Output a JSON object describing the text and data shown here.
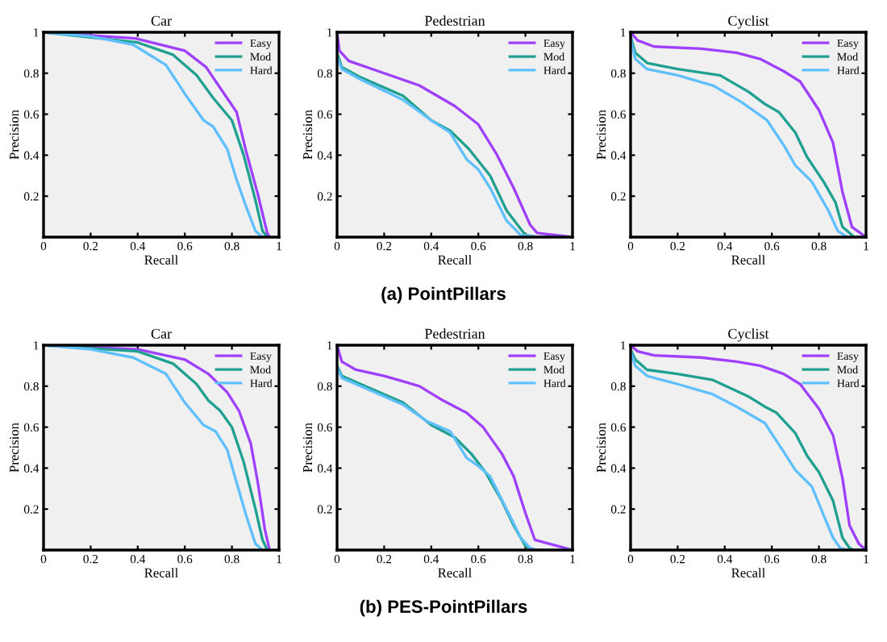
{
  "chart_data": [
    {
      "type": "line",
      "title": "Car",
      "xlabel": "Recall",
      "ylabel": "Precision",
      "xlim": [
        0,
        1
      ],
      "ylim": [
        0,
        1
      ],
      "xticks": [
        0,
        0.2,
        0.4,
        0.6,
        0.8,
        1
      ],
      "yticks": [
        0.2,
        0.4,
        0.6,
        0.8,
        1
      ],
      "grid": false,
      "legend": "top right",
      "annotations": [
        "(a) PointPillars"
      ],
      "series": [
        {
          "name": "Easy",
          "color": "#a040ff",
          "x": [
            0,
            0.39,
            0.6,
            0.69,
            0.82,
            0.86,
            0.91,
            0.95,
            0.96
          ],
          "values": [
            1,
            0.97,
            0.91,
            0.83,
            0.61,
            0.42,
            0.21,
            0.02,
            0
          ]
        },
        {
          "name": "Mod",
          "color": "#20a090",
          "x": [
            0,
            0.4,
            0.55,
            0.65,
            0.72,
            0.8,
            0.85,
            0.9,
            0.93,
            0.95
          ],
          "values": [
            1,
            0.95,
            0.89,
            0.79,
            0.68,
            0.57,
            0.4,
            0.18,
            0.03,
            0
          ]
        },
        {
          "name": "Hard",
          "color": "#60c0ff",
          "x": [
            0,
            0.2,
            0.38,
            0.52,
            0.6,
            0.68,
            0.72,
            0.78,
            0.82,
            0.86,
            0.9,
            0.93
          ],
          "values": [
            1,
            0.98,
            0.94,
            0.84,
            0.7,
            0.57,
            0.54,
            0.43,
            0.28,
            0.15,
            0.03,
            0
          ]
        }
      ]
    },
    {
      "type": "line",
      "title": "Pedestrian",
      "xlabel": "Recall",
      "ylabel": "Precision",
      "xlim": [
        0,
        1
      ],
      "ylim": [
        0,
        1
      ],
      "xticks": [
        0,
        0.2,
        0.4,
        0.6,
        0.8,
        1
      ],
      "yticks": [
        0.2,
        0.4,
        0.6,
        0.8,
        1
      ],
      "grid": false,
      "legend": "top right",
      "series": [
        {
          "name": "Easy",
          "color": "#a040ff",
          "x": [
            0,
            0.01,
            0.05,
            0.2,
            0.35,
            0.5,
            0.6,
            0.68,
            0.75,
            0.82,
            0.85,
            1
          ],
          "values": [
            1,
            0.91,
            0.86,
            0.8,
            0.74,
            0.64,
            0.55,
            0.4,
            0.24,
            0.06,
            0.02,
            0
          ]
        },
        {
          "name": "Mod",
          "color": "#20a090",
          "x": [
            0,
            0.02,
            0.1,
            0.28,
            0.4,
            0.48,
            0.56,
            0.65,
            0.72,
            0.8,
            0.85,
            1
          ],
          "values": [
            0.9,
            0.83,
            0.78,
            0.69,
            0.57,
            0.52,
            0.43,
            0.3,
            0.13,
            0.01,
            0,
            0
          ]
        },
        {
          "name": "Hard",
          "color": "#60c0ff",
          "x": [
            0,
            0.02,
            0.1,
            0.28,
            0.4,
            0.48,
            0.55,
            0.6,
            0.65,
            0.72,
            0.78,
            0.85,
            1
          ],
          "values": [
            0.88,
            0.82,
            0.77,
            0.67,
            0.57,
            0.51,
            0.38,
            0.33,
            0.24,
            0.08,
            0.01,
            0,
            0
          ]
        }
      ]
    },
    {
      "type": "line",
      "title": "Cyclist",
      "xlabel": "Recall",
      "ylabel": "Precision",
      "xlim": [
        0,
        1
      ],
      "ylim": [
        0,
        1
      ],
      "xticks": [
        0,
        0.2,
        0.4,
        0.6,
        0.8,
        1
      ],
      "yticks": [
        0.2,
        0.4,
        0.6,
        0.8,
        1
      ],
      "grid": false,
      "legend": "top right",
      "series": [
        {
          "name": "Easy",
          "color": "#a040ff",
          "x": [
            0,
            0.03,
            0.1,
            0.3,
            0.45,
            0.55,
            0.65,
            0.72,
            0.8,
            0.86,
            0.9,
            0.94,
            1
          ],
          "values": [
            1,
            0.96,
            0.93,
            0.92,
            0.9,
            0.87,
            0.81,
            0.76,
            0.62,
            0.46,
            0.22,
            0.05,
            0
          ]
        },
        {
          "name": "Mod",
          "color": "#20a090",
          "x": [
            0,
            0.02,
            0.07,
            0.2,
            0.38,
            0.5,
            0.57,
            0.63,
            0.7,
            0.75,
            0.82,
            0.87,
            0.9,
            0.95,
            1
          ],
          "values": [
            0.98,
            0.9,
            0.85,
            0.82,
            0.79,
            0.71,
            0.65,
            0.61,
            0.51,
            0.39,
            0.27,
            0.17,
            0.05,
            0,
            0
          ]
        },
        {
          "name": "Hard",
          "color": "#60c0ff",
          "x": [
            0,
            0.02,
            0.07,
            0.2,
            0.35,
            0.47,
            0.58,
            0.65,
            0.7,
            0.77,
            0.84,
            0.88,
            0.92,
            1
          ],
          "values": [
            0.97,
            0.87,
            0.82,
            0.79,
            0.74,
            0.66,
            0.57,
            0.45,
            0.35,
            0.27,
            0.13,
            0.03,
            0,
            0
          ]
        }
      ]
    },
    {
      "type": "line",
      "title": "Car",
      "xlabel": "Recall",
      "ylabel": "Precision",
      "xlim": [
        0,
        1
      ],
      "ylim": [
        0,
        1
      ],
      "xticks": [
        0,
        0.2,
        0.4,
        0.6,
        0.8,
        1
      ],
      "yticks": [
        0.2,
        0.4,
        0.6,
        0.8,
        1
      ],
      "grid": false,
      "legend": "top right",
      "annotations": [
        "(b) PES-PointPillars"
      ],
      "series": [
        {
          "name": "Easy",
          "color": "#a040ff",
          "x": [
            0,
            0.4,
            0.6,
            0.7,
            0.78,
            0.83,
            0.88,
            0.91,
            0.94,
            0.96
          ],
          "values": [
            1,
            0.98,
            0.93,
            0.86,
            0.77,
            0.68,
            0.52,
            0.33,
            0.1,
            0
          ]
        },
        {
          "name": "Mod",
          "color": "#20a090",
          "x": [
            0,
            0.4,
            0.55,
            0.65,
            0.7,
            0.75,
            0.8,
            0.85,
            0.9,
            0.93,
            0.95
          ],
          "values": [
            1,
            0.97,
            0.91,
            0.81,
            0.73,
            0.68,
            0.6,
            0.43,
            0.2,
            0.05,
            0
          ]
        },
        {
          "name": "Hard",
          "color": "#60c0ff",
          "x": [
            0,
            0.2,
            0.38,
            0.52,
            0.6,
            0.68,
            0.73,
            0.78,
            0.82,
            0.86,
            0.9,
            0.93
          ],
          "values": [
            1,
            0.98,
            0.94,
            0.86,
            0.72,
            0.61,
            0.58,
            0.49,
            0.33,
            0.17,
            0.03,
            0
          ]
        }
      ]
    },
    {
      "type": "line",
      "title": "Pedestrian",
      "xlabel": "Recall",
      "ylabel": "Precision",
      "xlim": [
        0,
        1
      ],
      "ylim": [
        0,
        1
      ],
      "xticks": [
        0,
        0.2,
        0.4,
        0.6,
        0.8,
        1
      ],
      "yticks": [
        0.2,
        0.4,
        0.6,
        0.8,
        1
      ],
      "grid": false,
      "legend": "top right",
      "series": [
        {
          "name": "Easy",
          "color": "#a040ff",
          "x": [
            0,
            0.02,
            0.08,
            0.2,
            0.35,
            0.45,
            0.55,
            0.62,
            0.7,
            0.75,
            0.8,
            0.84,
            1
          ],
          "values": [
            1,
            0.92,
            0.88,
            0.85,
            0.8,
            0.73,
            0.67,
            0.6,
            0.47,
            0.36,
            0.18,
            0.05,
            0
          ]
        },
        {
          "name": "Mod",
          "color": "#20a090",
          "x": [
            0,
            0.02,
            0.1,
            0.28,
            0.4,
            0.5,
            0.57,
            0.63,
            0.7,
            0.75,
            0.8,
            0.83,
            1
          ],
          "values": [
            0.9,
            0.85,
            0.81,
            0.72,
            0.61,
            0.55,
            0.47,
            0.38,
            0.24,
            0.12,
            0.02,
            0,
            0
          ]
        },
        {
          "name": "Hard",
          "color": "#60c0ff",
          "x": [
            0,
            0.02,
            0.1,
            0.28,
            0.38,
            0.48,
            0.55,
            0.6,
            0.65,
            0.72,
            0.78,
            0.82,
            0.85,
            1
          ],
          "values": [
            0.89,
            0.84,
            0.8,
            0.71,
            0.63,
            0.58,
            0.45,
            0.41,
            0.36,
            0.2,
            0.06,
            0.01,
            0,
            0
          ]
        }
      ]
    },
    {
      "type": "line",
      "title": "Cyclist",
      "xlabel": "Recall",
      "ylabel": "Precision",
      "xlim": [
        0,
        1
      ],
      "ylim": [
        0,
        1
      ],
      "xticks": [
        0,
        0.2,
        0.4,
        0.6,
        0.8,
        1
      ],
      "yticks": [
        0.2,
        0.4,
        0.6,
        0.8,
        1
      ],
      "grid": false,
      "legend": "top right",
      "series": [
        {
          "name": "Easy",
          "color": "#a040ff",
          "x": [
            0,
            0.03,
            0.1,
            0.3,
            0.45,
            0.55,
            0.65,
            0.72,
            0.8,
            0.86,
            0.9,
            0.93,
            0.97,
            1
          ],
          "values": [
            1,
            0.97,
            0.95,
            0.94,
            0.92,
            0.9,
            0.86,
            0.81,
            0.69,
            0.56,
            0.35,
            0.12,
            0.03,
            0
          ]
        },
        {
          "name": "Mod",
          "color": "#20a090",
          "x": [
            0,
            0.02,
            0.07,
            0.2,
            0.35,
            0.5,
            0.57,
            0.62,
            0.7,
            0.75,
            0.8,
            0.86,
            0.9,
            0.93,
            0.95,
            1
          ],
          "values": [
            0.98,
            0.93,
            0.88,
            0.86,
            0.83,
            0.75,
            0.7,
            0.67,
            0.57,
            0.46,
            0.38,
            0.24,
            0.06,
            0.01,
            0,
            0
          ]
        },
        {
          "name": "Hard",
          "color": "#60c0ff",
          "x": [
            0,
            0.02,
            0.07,
            0.2,
            0.35,
            0.45,
            0.57,
            0.65,
            0.7,
            0.77,
            0.82,
            0.86,
            0.89,
            0.92,
            1
          ],
          "values": [
            0.97,
            0.9,
            0.85,
            0.81,
            0.76,
            0.7,
            0.62,
            0.48,
            0.39,
            0.31,
            0.17,
            0.06,
            0.01,
            0,
            0
          ]
        }
      ]
    }
  ]
}
